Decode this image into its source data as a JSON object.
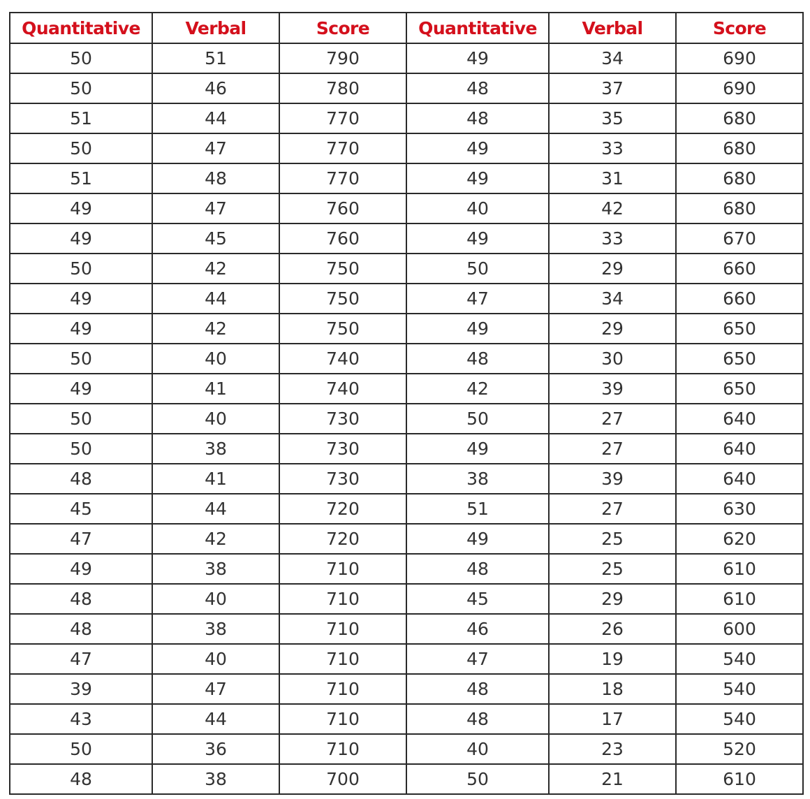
{
  "headers": [
    "Quantitative",
    "Verbal",
    "Score",
    "Quantitative",
    "Verbal",
    "Score"
  ],
  "colors": {
    "header_text": "#d4101c",
    "cell_text": "#333333",
    "border": "#2a2a2a"
  },
  "rows": [
    [
      "50",
      "51",
      "790",
      "49",
      "34",
      "690"
    ],
    [
      "50",
      "46",
      "780",
      "48",
      "37",
      "690"
    ],
    [
      "51",
      "44",
      "770",
      "48",
      "35",
      "680"
    ],
    [
      "50",
      "47",
      "770",
      "49",
      "33",
      "680"
    ],
    [
      "51",
      "48",
      "770",
      "49",
      "31",
      "680"
    ],
    [
      "49",
      "47",
      "760",
      "40",
      "42",
      "680"
    ],
    [
      "49",
      "45",
      "760",
      "49",
      "33",
      "670"
    ],
    [
      "50",
      "42",
      "750",
      "50",
      "29",
      "660"
    ],
    [
      "49",
      "44",
      "750",
      "47",
      "34",
      "660"
    ],
    [
      "49",
      "42",
      "750",
      "49",
      "29",
      "650"
    ],
    [
      "50",
      "40",
      "740",
      "48",
      "30",
      "650"
    ],
    [
      "49",
      "41",
      "740",
      "42",
      "39",
      "650"
    ],
    [
      "50",
      "40",
      "730",
      "50",
      "27",
      "640"
    ],
    [
      "50",
      "38",
      "730",
      "49",
      "27",
      "640"
    ],
    [
      "48",
      "41",
      "730",
      "38",
      "39",
      "640"
    ],
    [
      "45",
      "44",
      "720",
      "51",
      "27",
      "630"
    ],
    [
      "47",
      "42",
      "720",
      "49",
      "25",
      "620"
    ],
    [
      "49",
      "38",
      "710",
      "48",
      "25",
      "610"
    ],
    [
      "48",
      "40",
      "710",
      "45",
      "29",
      "610"
    ],
    [
      "48",
      "38",
      "710",
      "46",
      "26",
      "600"
    ],
    [
      "47",
      "40",
      "710",
      "47",
      "19",
      "540"
    ],
    [
      "39",
      "47",
      "710",
      "48",
      "18",
      "540"
    ],
    [
      "43",
      "44",
      "710",
      "48",
      "17",
      "540"
    ],
    [
      "50",
      "36",
      "710",
      "40",
      "23",
      "520"
    ],
    [
      "48",
      "38",
      "700",
      "50",
      "21",
      "610"
    ]
  ]
}
